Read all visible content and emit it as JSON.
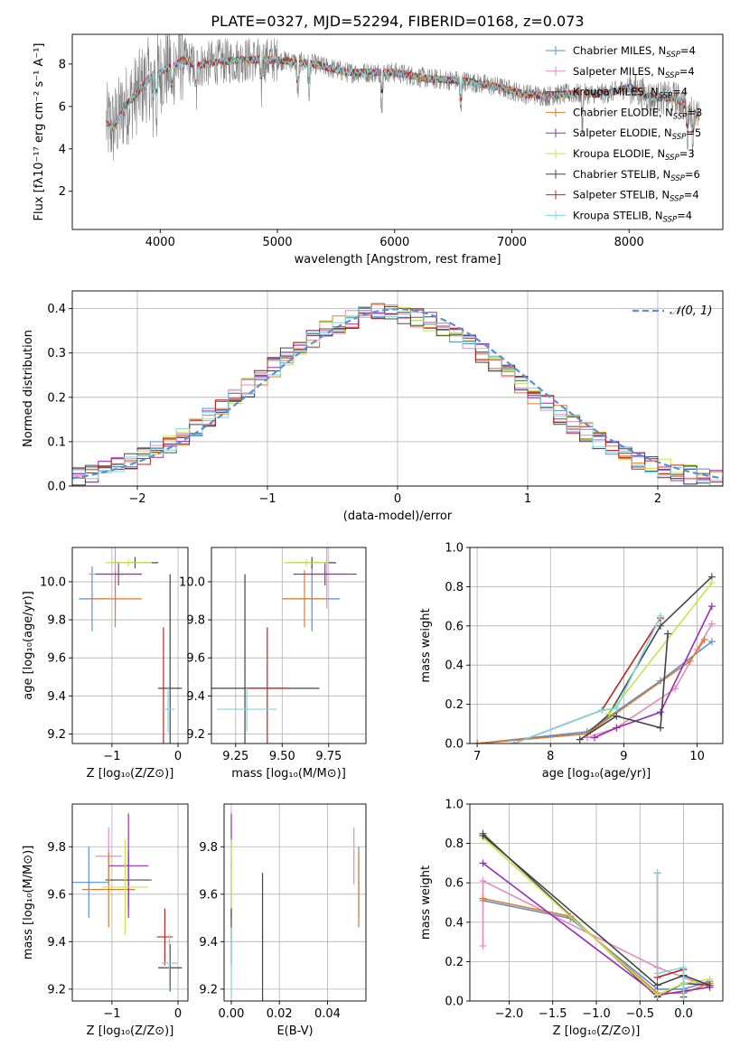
{
  "title": "PLATE=0327, MJD=52294, FIBERID=0168, z=0.073",
  "colors": {
    "Chabrier MILES": "#5b8fd6",
    "Salpeter MILES": "#e58bbf",
    "Kroupa MILES": "#4a4a4a",
    "Chabrier ELODIE": "#e07b2a",
    "Salpeter ELODIE": "#9a2db5",
    "Kroupa ELODIE": "#c9e44a",
    "Chabrier STELIB": "#444444",
    "Salpeter STELIB": "#c42020",
    "Kroupa STELIB": "#7fd6de"
  },
  "chart_data": [
    {
      "id": "spectrum",
      "type": "line",
      "xlabel": "wavelength [Angstrom, rest frame]",
      "ylabel": "Flux [fλ10⁻¹⁷ erg cm⁻² s⁻¹ A⁻¹]",
      "xlim": [
        3250,
        8800
      ],
      "ylim": [
        0.2,
        9.4
      ],
      "xticks": [
        4000,
        5000,
        6000,
        7000,
        8000
      ],
      "yticks": [
        2,
        4,
        6,
        8
      ],
      "grid": false,
      "legend_position": "right",
      "legend": [
        {
          "name": "Chabrier MILES",
          "n": "4"
        },
        {
          "name": "Salpeter MILES",
          "n": "4"
        },
        {
          "name": "Kroupa MILES",
          "n": "4"
        },
        {
          "name": "Chabrier ELODIE",
          "n": "3"
        },
        {
          "name": "Salpeter ELODIE",
          "n": "5"
        },
        {
          "name": "Kroupa ELODIE",
          "n": "3"
        },
        {
          "name": "Chabrier STELIB",
          "n": "6"
        },
        {
          "name": "Salpeter STELIB",
          "n": "4"
        },
        {
          "name": "Kroupa STELIB",
          "n": "4"
        }
      ],
      "continuum": {
        "x": [
          3540,
          3600,
          3700,
          3800,
          3900,
          4000,
          4100,
          4200,
          4300,
          4400,
          4500,
          4700,
          5000,
          5300,
          5600,
          6000,
          6300,
          6600,
          6900,
          7100,
          7300,
          7500,
          7800,
          8000,
          8200,
          8400,
          8600
        ],
        "y": [
          5.2,
          5.0,
          6.0,
          6.6,
          7.3,
          7.6,
          7.9,
          8.2,
          7.9,
          8.0,
          8.1,
          8.2,
          8.2,
          8.0,
          7.6,
          7.6,
          7.3,
          7.2,
          6.9,
          6.6,
          6.5,
          6.6,
          6.6,
          6.9,
          6.4,
          6.4,
          5.5
        ]
      },
      "absorption_lines_x": [
        3934,
        3969,
        4101,
        4305,
        4861,
        5175,
        5270,
        5890,
        6563,
        7600,
        8498,
        8542,
        8662
      ]
    },
    {
      "id": "residuals",
      "type": "line",
      "xlabel": "(data-model)/error",
      "ylabel": "Normed distribution",
      "xlim": [
        -2.5,
        2.5
      ],
      "ylim": [
        0,
        0.44
      ],
      "xticks": [
        -2,
        -1,
        0,
        1,
        2
      ],
      "yticks": [
        0.0,
        0.1,
        0.2,
        0.3,
        0.4
      ],
      "grid": true,
      "legend": "𝒩(0, 1)",
      "legend_position": "top-right",
      "histogram": {
        "bin_edges_from": -2.5,
        "bin_width": 0.1
      }
    },
    {
      "id": "age-vs-Z",
      "type": "scatter",
      "xlabel": "Z [log₁₀(Z/Z⊙)]",
      "ylabel": "age  [log₁₀(age/yr)]",
      "xlim": [
        -1.6,
        0.15
      ],
      "ylim": [
        9.15,
        10.18
      ],
      "xticks": [
        -1,
        0
      ],
      "yticks": [
        9.2,
        9.4,
        9.6,
        9.8,
        10.0
      ],
      "grid": true,
      "points": [
        {
          "model": "Chabrier MILES",
          "x": -1.3,
          "y": 9.91,
          "xerr": 0.2,
          "yerr": 0.17
        },
        {
          "model": "Salpeter MILES",
          "x": -0.95,
          "y": 10.04,
          "xerr": 0.4,
          "yerr": 0.18
        },
        {
          "model": "Kroupa MILES",
          "x": -0.65,
          "y": 10.1,
          "xerr": 0.35,
          "yerr": 0.03
        },
        {
          "model": "Chabrier ELODIE",
          "x": -0.95,
          "y": 9.91,
          "xerr": 0.4,
          "yerr": 0.15
        },
        {
          "model": "Salpeter ELODIE",
          "x": -0.9,
          "y": 10.04,
          "xerr": 0.35,
          "yerr": 0.06
        },
        {
          "model": "Kroupa ELODIE",
          "x": -0.75,
          "y": 10.1,
          "xerr": 0.35,
          "yerr": 0.02
        },
        {
          "model": "Chabrier STELIB",
          "x": -0.12,
          "y": 9.44,
          "xerr": 0.18,
          "yerr": 0.6
        },
        {
          "model": "Salpeter STELIB",
          "x": -0.22,
          "y": 9.44,
          "xerr": 0.03,
          "yerr": 0.32
        },
        {
          "model": "Kroupa STELIB",
          "x": -0.15,
          "y": 9.33,
          "xerr": 0.1,
          "yerr": 0.12
        }
      ]
    },
    {
      "id": "age-vs-mass",
      "type": "scatter",
      "xlabel": "mass [log₁₀(M/M⊙)]",
      "ylabel": "",
      "xlim": [
        9.12,
        9.95
      ],
      "ylim": [
        9.15,
        10.18
      ],
      "xticks": [
        9.25,
        9.5,
        9.75
      ],
      "yticks": [
        9.2,
        9.4,
        9.6,
        9.8,
        10.0
      ],
      "grid": true,
      "points": [
        {
          "model": "Chabrier MILES",
          "x": 9.66,
          "y": 9.91,
          "xerr": 0.15,
          "yerr": 0.17
        },
        {
          "model": "Salpeter MILES",
          "x": 9.74,
          "y": 10.04,
          "xerr": 0.1,
          "yerr": 0.18
        },
        {
          "model": "Kroupa MILES",
          "x": 9.66,
          "y": 10.1,
          "xerr": 0.13,
          "yerr": 0.03
        },
        {
          "model": "Chabrier ELODIE",
          "x": 9.62,
          "y": 9.91,
          "xerr": 0.12,
          "yerr": 0.15
        },
        {
          "model": "Salpeter ELODIE",
          "x": 9.73,
          "y": 10.04,
          "xerr": 0.17,
          "yerr": 0.06
        },
        {
          "model": "Kroupa ELODIE",
          "x": 9.63,
          "y": 10.1,
          "xerr": 0.12,
          "yerr": 0.02
        },
        {
          "model": "Chabrier STELIB",
          "x": 9.3,
          "y": 9.44,
          "xerr": 0.4,
          "yerr": 0.6
        },
        {
          "model": "Salpeter STELIB",
          "x": 9.42,
          "y": 9.44,
          "xerr": 0.12,
          "yerr": 0.32
        },
        {
          "model": "Kroupa STELIB",
          "x": 9.31,
          "y": 9.33,
          "xerr": 0.16,
          "yerr": 0.12
        }
      ]
    },
    {
      "id": "mass-weight-vs-age",
      "type": "line",
      "xlabel": "age  [log₁₀(age/yr)]",
      "ylabel": "mass weight",
      "xlim": [
        6.9,
        10.35
      ],
      "ylim": [
        0,
        1
      ],
      "xticks": [
        7,
        8,
        9,
        10
      ],
      "yticks": [
        0.0,
        0.2,
        0.4,
        0.6,
        0.8,
        1.0
      ],
      "grid": true,
      "series": [
        {
          "model": "Chabrier MILES",
          "x": [
            7.0,
            8.5,
            9.5,
            10.2
          ],
          "y": [
            0.0,
            0.06,
            0.32,
            0.52
          ]
        },
        {
          "model": "Salpeter MILES",
          "x": [
            8.5,
            8.9,
            9.7,
            10.0,
            10.2
          ],
          "y": [
            0.03,
            0.08,
            0.28,
            0.48,
            0.61
          ]
        },
        {
          "model": "Kroupa MILES",
          "x": [
            7.0,
            8.5,
            8.8,
            9.5,
            10.2
          ],
          "y": [
            0.0,
            0.05,
            0.15,
            0.6,
            0.85
          ]
        },
        {
          "model": "Chabrier ELODIE",
          "x": [
            7.0,
            8.5,
            9.9,
            10.1
          ],
          "y": [
            0.0,
            0.05,
            0.42,
            0.53
          ]
        },
        {
          "model": "Salpeter ELODIE",
          "x": [
            8.6,
            8.9,
            9.5,
            10.2
          ],
          "y": [
            0.03,
            0.08,
            0.16,
            0.7
          ]
        },
        {
          "model": "Kroupa ELODIE",
          "x": [
            8.8,
            10.2
          ],
          "y": [
            0.15,
            0.82
          ]
        },
        {
          "model": "Chabrier STELIB",
          "x": [
            8.4,
            8.9,
            9.5,
            9.6
          ],
          "y": [
            0.02,
            0.14,
            0.08,
            0.56
          ]
        },
        {
          "model": "Salpeter STELIB",
          "x": [
            7.5,
            8.7,
            9.5
          ],
          "y": [
            0.0,
            0.17,
            0.64
          ]
        },
        {
          "model": "Kroupa STELIB",
          "x": [
            7.5,
            8.7,
            8.9,
            9.5
          ],
          "y": [
            0.0,
            0.17,
            0.18,
            0.65
          ]
        }
      ]
    },
    {
      "id": "mass-vs-Z",
      "type": "scatter",
      "xlabel": "Z [log₁₀(Z/Z⊙)]",
      "ylabel": "mass [log₁₀(M/M⊙)]",
      "xlim": [
        -1.6,
        0.15
      ],
      "ylim": [
        9.15,
        9.98
      ],
      "xticks": [
        -1,
        0
      ],
      "yticks": [
        9.2,
        9.4,
        9.6,
        9.8
      ],
      "grid": true,
      "points": [
        {
          "model": "Chabrier MILES",
          "x": -1.35,
          "y": 9.65,
          "xerr": 0.3,
          "yerr": 0.15
        },
        {
          "model": "Salpeter MILES",
          "x": -1.05,
          "y": 9.76,
          "xerr": 0.2,
          "yerr": 0.12
        },
        {
          "model": "Kroupa MILES",
          "x": -0.75,
          "y": 9.66,
          "xerr": 0.35,
          "yerr": 0.12
        },
        {
          "model": "Chabrier ELODIE",
          "x": -1.05,
          "y": 9.62,
          "xerr": 0.4,
          "yerr": 0.16
        },
        {
          "model": "Salpeter ELODIE",
          "x": -0.75,
          "y": 9.72,
          "xerr": 0.3,
          "yerr": 0.22
        },
        {
          "model": "Kroupa ELODIE",
          "x": -0.8,
          "y": 9.63,
          "xerr": 0.35,
          "yerr": 0.2
        },
        {
          "model": "Chabrier STELIB",
          "x": -0.12,
          "y": 9.29,
          "xerr": 0.18,
          "yerr": 0.1
        },
        {
          "model": "Salpeter STELIB",
          "x": -0.2,
          "y": 9.42,
          "xerr": 0.12,
          "yerr": 0.12
        },
        {
          "model": "Kroupa STELIB",
          "x": -0.13,
          "y": 9.31,
          "xerr": 0.12,
          "yerr": 0.12
        }
      ]
    },
    {
      "id": "mass-vs-EBV",
      "type": "scatter",
      "xlabel": "E(B-V)",
      "ylabel": "",
      "xlim": [
        -0.003,
        0.056
      ],
      "ylim": [
        9.15,
        9.98
      ],
      "xticks": [
        0.0,
        0.02,
        0.04
      ],
      "yticks": [
        9.2,
        9.4,
        9.6,
        9.8
      ],
      "grid": true,
      "points": [
        {
          "model": "Chabrier MILES",
          "x": 0.053,
          "y": 9.65,
          "xerr": 0,
          "yerr": 0.15
        },
        {
          "model": "Salpeter MILES",
          "x": 0.051,
          "y": 9.76,
          "xerr": 0,
          "yerr": 0.12
        },
        {
          "model": "Chabrier ELODIE",
          "x": 0.053,
          "y": 9.62,
          "xerr": 0,
          "yerr": 0.16
        },
        {
          "model": "Salpeter ELODIE",
          "x": 0.0,
          "y": 9.72,
          "xerr": 0,
          "yerr": 0.22
        },
        {
          "model": "Kroupa ELODIE",
          "x": 0.0,
          "y": 9.63,
          "xerr": 0,
          "yerr": 0.2
        },
        {
          "model": "Kroupa MILES",
          "x": 0.0,
          "y": 9.42,
          "xerr": 0,
          "yerr": 0.12
        },
        {
          "model": "Chabrier STELIB",
          "x": 0.013,
          "y": 9.42,
          "xerr": 0,
          "yerr": 0.27
        },
        {
          "model": "Kroupa STELIB",
          "x": 0.0,
          "y": 9.31,
          "xerr": 0,
          "yerr": 0.15
        }
      ]
    },
    {
      "id": "mass-weight-vs-Z",
      "type": "line",
      "xlabel": "Z [log₁₀(Z/Z⊙)]",
      "ylabel": "mass weight",
      "xlim": [
        -2.45,
        0.45
      ],
      "ylim": [
        0,
        1
      ],
      "xticks": [
        -2.0,
        -1.5,
        -1.0,
        -0.5,
        0.0
      ],
      "yticks": [
        0.0,
        0.2,
        0.4,
        0.6,
        0.8,
        1.0
      ],
      "grid": true,
      "series": [
        {
          "model": "Chabrier MILES",
          "x": [
            -2.3,
            -1.3,
            -0.3,
            0.0,
            0.3
          ],
          "y": [
            0.51,
            0.42,
            0.06,
            0.06,
            0.1
          ]
        },
        {
          "model": "Salpeter MILES",
          "x": [
            -2.3,
            -2.3,
            -0.3,
            0.3
          ],
          "y": [
            0.28,
            0.61,
            0.17,
            0.07
          ]
        },
        {
          "model": "Kroupa MILES",
          "x": [
            -2.3,
            -0.3,
            0.0,
            0.3
          ],
          "y": [
            0.85,
            0.02,
            0.09,
            0.08
          ]
        },
        {
          "model": "Chabrier ELODIE",
          "x": [
            -2.3,
            -1.3,
            -0.3,
            0.0,
            0.3
          ],
          "y": [
            0.52,
            0.43,
            0.04,
            0.04,
            0.09
          ]
        },
        {
          "model": "Salpeter ELODIE",
          "x": [
            -2.3,
            -0.3,
            0.3
          ],
          "y": [
            0.7,
            0.03,
            0.07
          ]
        },
        {
          "model": "Kroupa ELODIE",
          "x": [
            -2.3,
            -0.3,
            0.0,
            0.3
          ],
          "y": [
            0.83,
            0.03,
            0.09,
            0.11
          ]
        },
        {
          "model": "Chabrier STELIB",
          "x": [
            -2.3,
            -0.3,
            0.0,
            0.3
          ],
          "y": [
            0.84,
            0.08,
            0.13,
            0.08
          ]
        },
        {
          "model": "Salpeter STELIB",
          "x": [
            -0.3,
            -0.3,
            0.0,
            0.0
          ],
          "y": [
            0.65,
            0.12,
            0.16,
            0.02
          ]
        },
        {
          "model": "Kroupa STELIB",
          "x": [
            -0.3,
            -0.3,
            0.0,
            0.0
          ],
          "y": [
            0.65,
            0.14,
            0.17,
            0.0
          ]
        }
      ]
    }
  ]
}
